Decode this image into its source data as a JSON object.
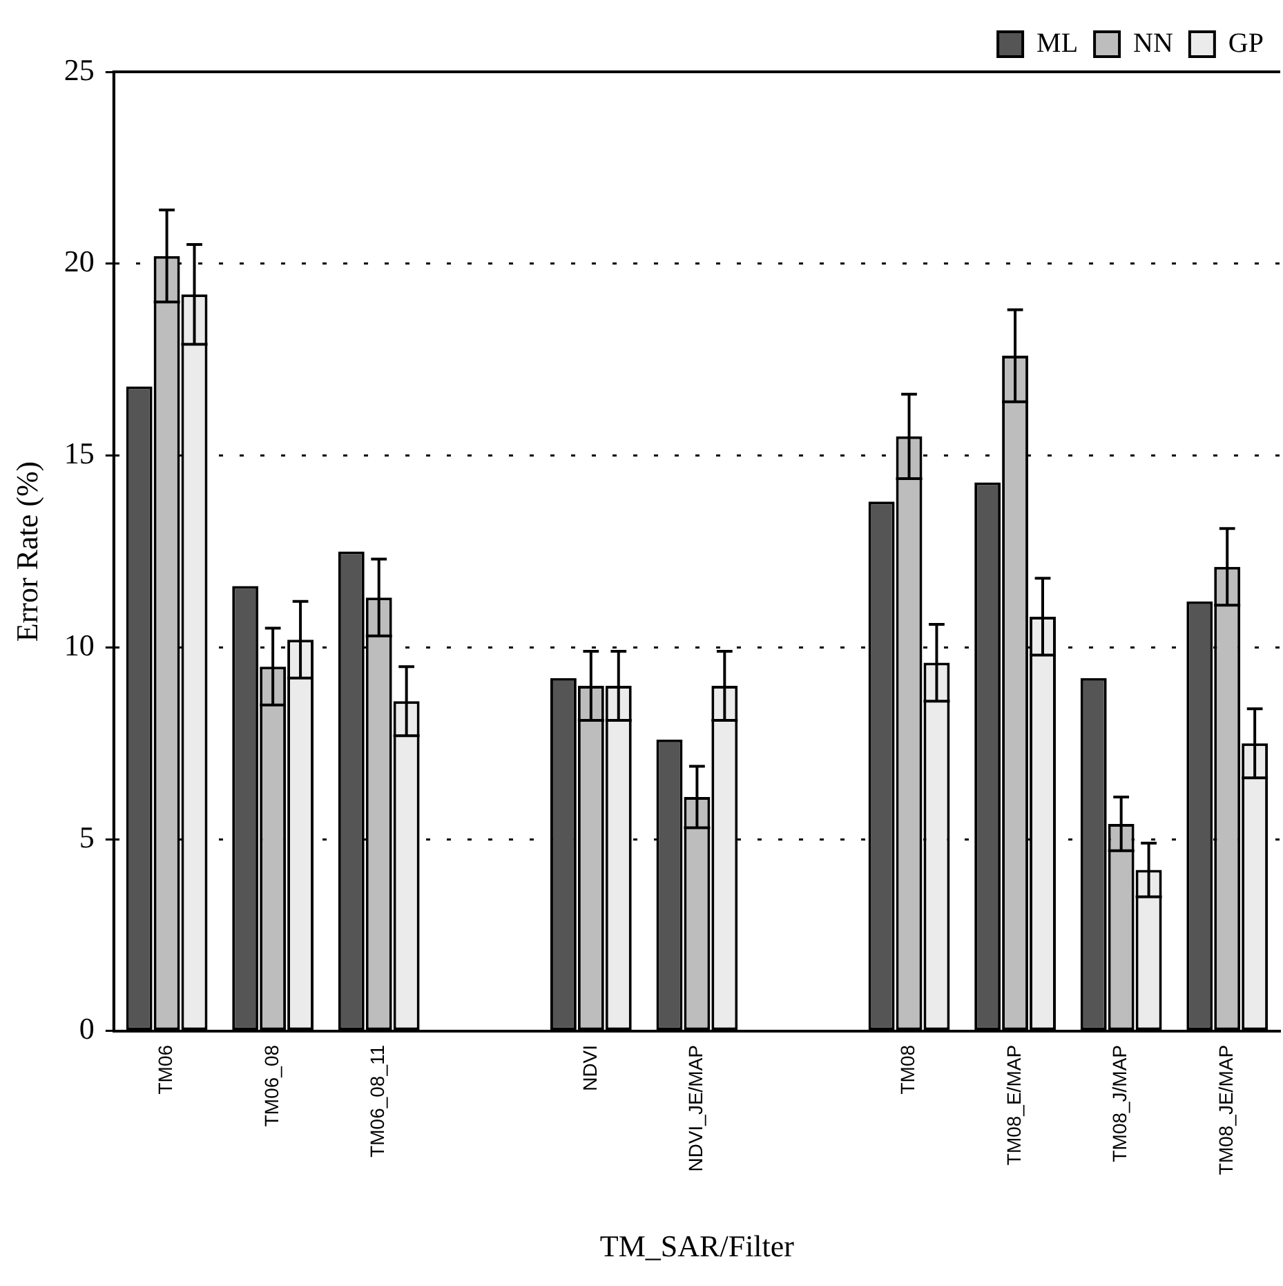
{
  "chart_data": {
    "type": "bar",
    "xlabel": "TM_SAR/Filter",
    "ylabel": "Error Rate (%)",
    "categories": [
      "TM06",
      "TM06_08",
      "TM06_08_11",
      null,
      "NDVI",
      "NDVI_JE/MAP",
      null,
      "TM08",
      "TM08_E/MAP",
      "TM08_J/MAP",
      "TM08_JE/MAP"
    ],
    "series": [
      {
        "name": "ML",
        "color": "#555555",
        "values": [
          16.8,
          11.6,
          12.5,
          null,
          9.2,
          7.6,
          null,
          13.8,
          14.3,
          9.2,
          11.2
        ]
      },
      {
        "name": "NN",
        "color": "#bdbdbd",
        "values": [
          20.2,
          9.5,
          11.3,
          null,
          9.0,
          6.1,
          null,
          15.5,
          17.6,
          5.4,
          12.1
        ],
        "errors": [
          1.2,
          1.0,
          1.0,
          null,
          0.9,
          0.8,
          null,
          1.1,
          1.2,
          0.7,
          1.0
        ]
      },
      {
        "name": "GP",
        "color": "#ebebeb",
        "values": [
          19.2,
          10.2,
          8.6,
          null,
          9.0,
          9.0,
          null,
          9.6,
          10.8,
          4.2,
          7.5
        ],
        "errors": [
          1.3,
          1.0,
          0.9,
          null,
          0.9,
          0.9,
          null,
          1.0,
          1.0,
          0.7,
          0.9
        ]
      }
    ],
    "ylim": [
      0,
      25
    ],
    "yticks": [
      0,
      5,
      10,
      15,
      20,
      25
    ],
    "grid": "y",
    "legend": "top right"
  }
}
